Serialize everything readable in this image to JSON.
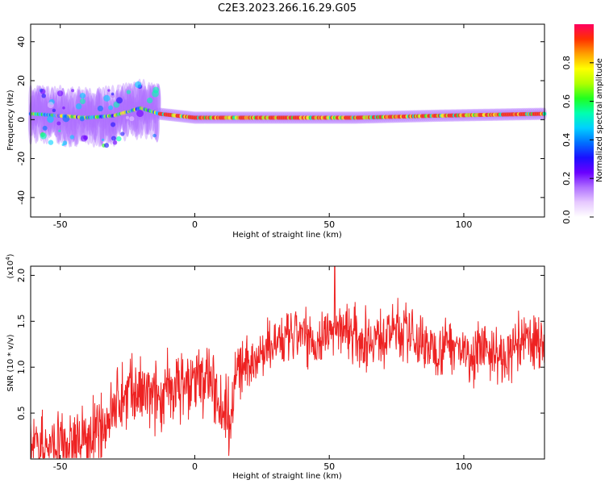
{
  "title": "C2E3.2023.266.16.29.G05",
  "colors": {
    "snr_line": "#ee2222",
    "colormap": [
      "#ffffff",
      "#e6c8ff",
      "#b070ff",
      "#6a00ff",
      "#1a10ff",
      "#0070ff",
      "#00d0ff",
      "#00ffb0",
      "#20ff20",
      "#b0ff00",
      "#ffff00",
      "#ffa000",
      "#ff3000",
      "#ff0060"
    ]
  },
  "chart_data": [
    {
      "type": "heatmap",
      "name": "spectrogram",
      "title": "C2E3.2023.266.16.29.G05",
      "xlabel": "Height of straight line (km)",
      "ylabel": "Frequency (Hz)",
      "xlim": [
        -61,
        130
      ],
      "ylim": [
        -50,
        49
      ],
      "xticks": [
        -50,
        0,
        50,
        100
      ],
      "yticks": [
        -40,
        -20,
        0,
        20,
        40
      ],
      "ridge": {
        "description_points": [
          {
            "x": -60,
            "y": 3
          },
          {
            "x": -50,
            "y": 2
          },
          {
            "x": -40,
            "y": 1
          },
          {
            "x": -30,
            "y": 2
          },
          {
            "x": -20,
            "y": 6
          },
          {
            "x": -13,
            "y": 3
          },
          {
            "x": 0,
            "y": 1
          },
          {
            "x": 30,
            "y": 1
          },
          {
            "x": 60,
            "y": 1
          },
          {
            "x": 90,
            "y": 2
          },
          {
            "x": 130,
            "y": 3
          }
        ]
      },
      "colorbar": {
        "label": "Normalized spectral amplitude",
        "ticks": [
          0.0,
          0.2,
          0.4,
          0.6,
          0.8
        ],
        "range": [
          0,
          1
        ]
      }
    },
    {
      "type": "line",
      "name": "snr",
      "xlabel": "Height of straight line (km)",
      "ylabel": "SNR (10 * v/v)",
      "multiplier_label": "(x10",
      "multiplier_exp": "4",
      "multiplier_close": ")",
      "xlim": [
        -61,
        130
      ],
      "ylim": [
        0,
        2.1
      ],
      "xticks": [
        -50,
        0,
        50,
        100
      ],
      "yticks": [
        0.5,
        1.0,
        1.5,
        2.0
      ],
      "ytick_labels": [
        "0.5",
        "1.0",
        "1.5",
        "2.0"
      ],
      "trend": {
        "x": [
          -61,
          -50,
          -40,
          -35,
          -30,
          -25,
          -20,
          -15,
          -10,
          -5,
          0,
          5,
          10,
          13,
          15,
          20,
          25,
          30,
          35,
          40,
          45,
          50,
          55,
          60,
          65,
          70,
          75,
          80,
          85,
          90,
          95,
          100,
          105,
          110,
          115,
          120,
          125,
          130
        ],
        "y": [
          0.1,
          0.15,
          0.2,
          0.3,
          0.55,
          0.75,
          0.7,
          0.65,
          0.75,
          0.8,
          0.85,
          0.9,
          0.6,
          0.45,
          0.9,
          1.05,
          1.15,
          1.25,
          1.3,
          1.35,
          1.25,
          1.4,
          1.45,
          1.35,
          1.3,
          1.35,
          1.4,
          1.35,
          1.25,
          1.2,
          1.3,
          1.15,
          1.15,
          1.2,
          1.05,
          1.25,
          1.3,
          1.25
        ]
      },
      "peak": {
        "x": 52,
        "y": 2.1
      }
    }
  ]
}
